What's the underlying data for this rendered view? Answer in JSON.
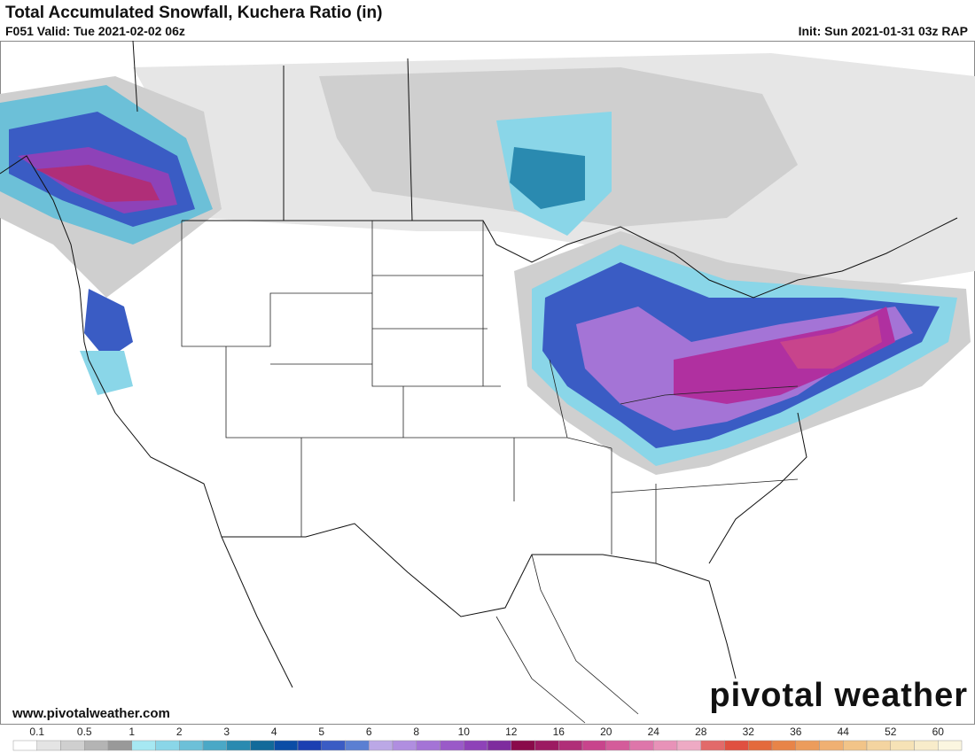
{
  "header": {
    "title": "Total Accumulated Snowfall, Kuchera Ratio (in)",
    "valid": "F051 Valid: Tue 2021-02-02 06z",
    "init": "Init: Sun 2021-01-31 03z RAP"
  },
  "watermark": "pivotal weather",
  "url": "www.pivotalweather.com",
  "colorbar": {
    "labels": [
      0.1,
      0.5,
      1,
      2,
      3,
      4,
      5,
      6,
      8,
      10,
      12,
      16,
      20,
      24,
      28,
      32,
      36,
      44,
      52,
      60
    ],
    "colors": [
      "#ffffff",
      "#e4e4e4",
      "#cfcfcf",
      "#b4b4b4",
      "#999999",
      "#a6e8f2",
      "#8ad6e8",
      "#6cc0d8",
      "#4aa8c6",
      "#2a8ab0",
      "#126a9a",
      "#0b4da6",
      "#1c3fb2",
      "#3a5cc4",
      "#5b7fd2",
      "#bba8e6",
      "#b08ee0",
      "#a474d6",
      "#9a5ac8",
      "#8e42b8",
      "#7e2c9e",
      "#8a0a4a",
      "#9c1a62",
      "#b02e78",
      "#c8448c",
      "#d45c9a",
      "#de76aa",
      "#e892b8",
      "#eeaac4",
      "#e26a6a",
      "#e05040",
      "#e46a3c",
      "#e88448",
      "#ec9c5c",
      "#f0b072",
      "#f2c488",
      "#f4d4a0",
      "#f6e2b6",
      "#f8ecca",
      "#fbf6e0"
    ]
  }
}
